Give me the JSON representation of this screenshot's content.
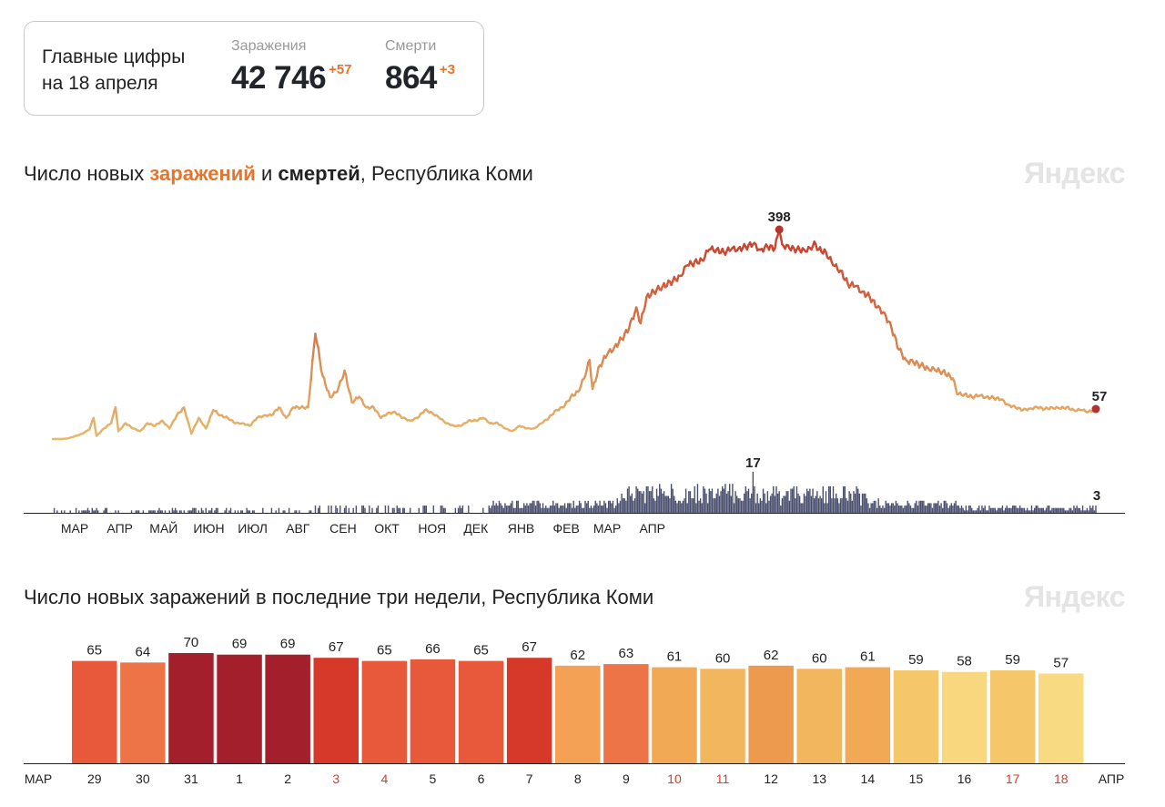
{
  "summary": {
    "title_line1": "Главные цифры",
    "title_line2": "на 18 апреля",
    "infections": {
      "label": "Заражения",
      "value": "42 746",
      "delta": "+57"
    },
    "deaths": {
      "label": "Смерти",
      "value": "864",
      "delta": "+3"
    }
  },
  "chart1_title": {
    "part1": "Число новых ",
    "part2": "заражений",
    "part3": " и ",
    "part4": "смертей",
    "part5": ", Республика Коми"
  },
  "chart2_title": "Число новых заражений в последние три недели, Республика Коми",
  "watermark": "Яндекс",
  "colors": {
    "accent": "#e8742c",
    "death_bars": "#4a4f6e",
    "peak_dot": "#b3332e",
    "line_light": "#e8b96a",
    "line_dark": "#c9452f"
  },
  "chart_data": [
    {
      "type": "line",
      "title": "Число новых заражений и смертей, Республика Коми",
      "x_ticks": [
        "МАР",
        "АПР",
        "МАЙ",
        "ИЮН",
        "ИЮЛ",
        "АВГ",
        "СЕН",
        "ОКТ",
        "НОЯ",
        "ДЕК",
        "ЯНВ",
        "ФЕВ",
        "МАР",
        "АПР"
      ],
      "ylim": [
        0,
        398
      ],
      "grid": false,
      "series": [
        {
          "name": "заражения",
          "anchors": [
            [
              0,
              0
            ],
            [
              5,
              0
            ],
            [
              10,
              1
            ],
            [
              15,
              5
            ],
            [
              20,
              10
            ],
            [
              25,
              18
            ],
            [
              28,
              40
            ],
            [
              30,
              6
            ],
            [
              35,
              20
            ],
            [
              40,
              30
            ],
            [
              43,
              60
            ],
            [
              45,
              15
            ],
            [
              50,
              30
            ],
            [
              55,
              20
            ],
            [
              60,
              15
            ],
            [
              65,
              30
            ],
            [
              70,
              25
            ],
            [
              75,
              35
            ],
            [
              80,
              20
            ],
            [
              85,
              45
            ],
            [
              90,
              60
            ],
            [
              95,
              10
            ],
            [
              100,
              40
            ],
            [
              105,
              20
            ],
            [
              110,
              55
            ],
            [
              115,
              45
            ],
            [
              120,
              40
            ],
            [
              125,
              30
            ],
            [
              130,
              30
            ],
            [
              135,
              25
            ],
            [
              140,
              40
            ],
            [
              145,
              45
            ],
            [
              150,
              45
            ],
            [
              155,
              60
            ],
            [
              160,
              40
            ],
            [
              165,
              60
            ],
            [
              170,
              60
            ],
            [
              175,
              60
            ],
            [
              180,
              200
            ],
            [
              185,
              120
            ],
            [
              190,
              80
            ],
            [
              195,
              90
            ],
            [
              200,
              130
            ],
            [
              205,
              70
            ],
            [
              210,
              80
            ],
            [
              215,
              60
            ],
            [
              220,
              60
            ],
            [
              225,
              40
            ],
            [
              230,
              50
            ],
            [
              235,
              50
            ],
            [
              240,
              40
            ],
            [
              245,
              35
            ],
            [
              250,
              40
            ],
            [
              255,
              55
            ],
            [
              260,
              50
            ],
            [
              265,
              40
            ],
            [
              270,
              30
            ],
            [
              275,
              25
            ],
            [
              280,
              25
            ],
            [
              285,
              35
            ],
            [
              290,
              35
            ],
            [
              295,
              40
            ],
            [
              300,
              30
            ],
            [
              305,
              30
            ],
            [
              310,
              20
            ],
            [
              315,
              15
            ],
            [
              320,
              25
            ],
            [
              325,
              20
            ],
            [
              330,
              20
            ],
            [
              335,
              30
            ],
            [
              340,
              40
            ],
            [
              345,
              55
            ],
            [
              350,
              60
            ],
            [
              355,
              80
            ],
            [
              360,
              90
            ],
            [
              365,
              120
            ],
            [
              368,
              150
            ],
            [
              370,
              95
            ],
            [
              375,
              140
            ],
            [
              380,
              160
            ],
            [
              385,
              175
            ],
            [
              390,
              190
            ],
            [
              395,
              210
            ],
            [
              400,
              250
            ],
            [
              403,
              220
            ],
            [
              407,
              270
            ],
            [
              412,
              280
            ],
            [
              418,
              290
            ],
            [
              425,
              300
            ],
            [
              430,
              310
            ],
            [
              435,
              330
            ],
            [
              445,
              340
            ],
            [
              450,
              360
            ],
            [
              455,
              360
            ],
            [
              460,
              355
            ],
            [
              465,
              360
            ],
            [
              470,
              362
            ],
            [
              475,
              365
            ],
            [
              480,
              370
            ],
            [
              485,
              360
            ],
            [
              490,
              365
            ],
            [
              495,
              362
            ],
            [
              498,
              398
            ],
            [
              500,
              370
            ],
            [
              505,
              362
            ],
            [
              510,
              360
            ],
            [
              515,
              360
            ],
            [
              520,
              360
            ],
            [
              522,
              375
            ],
            [
              525,
              360
            ],
            [
              530,
              355
            ],
            [
              535,
              330
            ],
            [
              540,
              320
            ],
            [
              545,
              295
            ],
            [
              550,
              290
            ],
            [
              555,
              280
            ],
            [
              560,
              270
            ],
            [
              565,
              250
            ],
            [
              570,
              240
            ],
            [
              575,
              210
            ],
            [
              580,
              170
            ],
            [
              585,
              150
            ],
            [
              590,
              145
            ],
            [
              595,
              140
            ],
            [
              600,
              135
            ],
            [
              605,
              130
            ],
            [
              610,
              128
            ],
            [
              615,
              120
            ],
            [
              617,
              115
            ],
            [
              620,
              85
            ],
            [
              625,
              85
            ],
            [
              630,
              80
            ],
            [
              635,
              82
            ],
            [
              640,
              80
            ],
            [
              645,
              78
            ],
            [
              650,
              75
            ],
            [
              655,
              65
            ],
            [
              660,
              60
            ],
            [
              665,
              55
            ],
            [
              670,
              58
            ],
            [
              675,
              60
            ],
            [
              680,
              57
            ],
            [
              685,
              60
            ],
            [
              690,
              58
            ],
            [
              695,
              60
            ],
            [
              700,
              55
            ],
            [
              705,
              55
            ],
            [
              710,
              52
            ],
            [
              715,
              57
            ]
          ]
        },
        {
          "name": "смерти",
          "max_label": 17,
          "last_label": 3
        }
      ],
      "annotations": [
        {
          "label": "398",
          "x": 498,
          "y": 398
        },
        {
          "label": "57",
          "x": 715,
          "y": 57
        },
        {
          "label": "17"
        },
        {
          "label": "3"
        }
      ]
    },
    {
      "type": "bar",
      "title": "Число новых заражений в последние три недели, Республика Коми",
      "x_start_label": "МАР",
      "x_end_label": "АПР",
      "categories": [
        "29",
        "30",
        "31",
        "1",
        "2",
        "3",
        "4",
        "5",
        "6",
        "7",
        "8",
        "9",
        "10",
        "11",
        "12",
        "13",
        "14",
        "15",
        "16",
        "17",
        "18"
      ],
      "values": [
        65,
        64,
        70,
        69,
        69,
        67,
        65,
        66,
        65,
        67,
        62,
        63,
        61,
        60,
        62,
        60,
        61,
        59,
        58,
        59,
        57
      ],
      "weekend": [
        false,
        false,
        false,
        false,
        false,
        true,
        true,
        false,
        false,
        false,
        false,
        false,
        true,
        true,
        false,
        false,
        false,
        false,
        false,
        true,
        true
      ],
      "colors": [
        "#e8593b",
        "#ec7446",
        "#a41f2c",
        "#a41f2c",
        "#a41f2c",
        "#d6382a",
        "#e8593b",
        "#e8593b",
        "#e8593b",
        "#d6382a",
        "#f4a055",
        "#ec7446",
        "#f2a955",
        "#f2b65e",
        "#ee9a4e",
        "#f2b65e",
        "#f2a955",
        "#f6c76a",
        "#f8d77f",
        "#f6c76a",
        "#f8da82"
      ],
      "ylim": [
        0,
        75
      ]
    }
  ]
}
